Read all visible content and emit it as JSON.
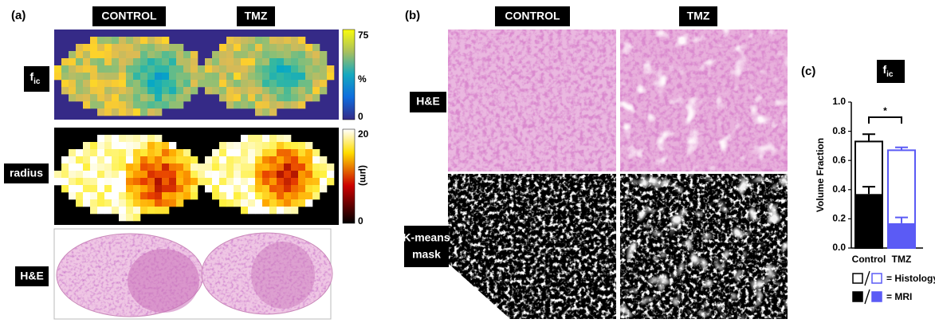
{
  "panel_a": {
    "label": "(a)",
    "columns": [
      "CONTROL",
      "TMZ"
    ],
    "rows": [
      {
        "label": "f",
        "subscript": "ic"
      },
      {
        "label": "radius"
      },
      {
        "label": "H&E"
      }
    ],
    "colorbars": [
      {
        "top": "75",
        "unit": "%",
        "bottom": "0"
      },
      {
        "top": "20",
        "unit": "(μm)",
        "bottom": "0"
      }
    ]
  },
  "panel_b": {
    "label": "(b)",
    "columns": [
      "CONTROL",
      "TMZ"
    ],
    "rows": [
      {
        "label": "H&E"
      },
      {
        "label_lines": [
          "K-means",
          "mask"
        ]
      }
    ]
  },
  "panel_c": {
    "label": "(c)"
  },
  "chart_data": {
    "type": "bar",
    "title": "f",
    "title_subscript": "ic",
    "ylabel": "Volume Fraction",
    "categories": [
      "Control",
      "TMZ"
    ],
    "colors": [
      "#000000",
      "#5b5bf5"
    ],
    "series": [
      {
        "name": "= Histology",
        "fill": "outline",
        "values": [
          0.73,
          0.67
        ],
        "errors": [
          0.05,
          0.02
        ]
      },
      {
        "name": "= MRI",
        "fill": "solid",
        "values": [
          0.37,
          0.17
        ],
        "errors": [
          0.05,
          0.04
        ]
      }
    ],
    "ylim": [
      0,
      1
    ],
    "yticks": [
      {
        "value": 0,
        "label": "0.0"
      },
      {
        "value": 0.2,
        "label": "0.2"
      },
      {
        "value": 0.4,
        "label": "0.4"
      },
      {
        "value": 0.6,
        "label": "0.6"
      },
      {
        "value": 0.8,
        "label": "0.8"
      },
      {
        "value": 1,
        "label": "1.0"
      }
    ],
    "annotation": "*"
  }
}
